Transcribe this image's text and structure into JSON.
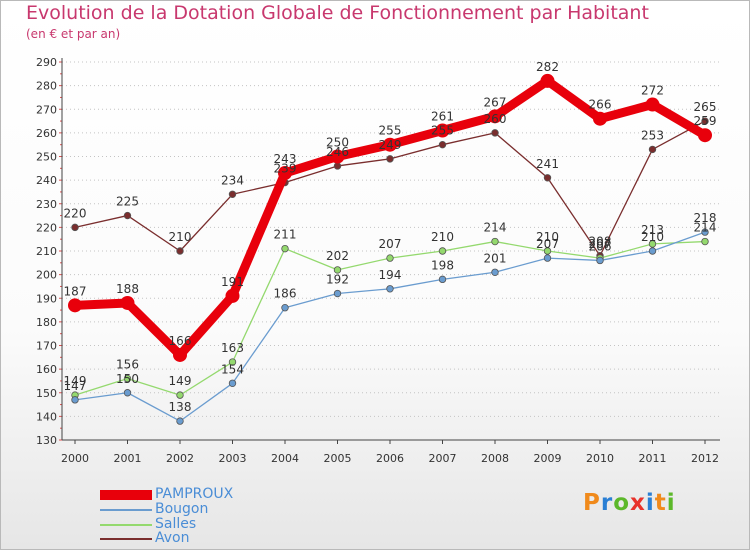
{
  "header": {
    "title": "Evolution de la Dotation Globale de Fonctionnement par Habitant",
    "subtitle": "(en € et par an)"
  },
  "logo": {
    "text": [
      "P",
      "r",
      "o",
      "x",
      "i",
      "t",
      "i"
    ],
    "colors": [
      "#f08a1c",
      "#2a7fd4",
      "#5cb82a",
      "#e8322a",
      "#2a7fd4",
      "#f08a1c",
      "#5cb82a"
    ]
  },
  "chart_data": {
    "type": "line",
    "title": "Evolution de la Dotation Globale de Fonctionnement par Habitant",
    "subtitle": "(en € et par an)",
    "x": [
      "2000",
      "2001",
      "2002",
      "2003",
      "2004",
      "2005",
      "2006",
      "2007",
      "2008",
      "2009",
      "2010",
      "2011",
      "2012"
    ],
    "ylim": [
      130,
      290
    ],
    "yticks": [
      130,
      140,
      150,
      160,
      170,
      180,
      190,
      200,
      210,
      220,
      230,
      240,
      250,
      260,
      270,
      280,
      290
    ],
    "grid": "horizontal-dotted",
    "legend_position": "bottom-left",
    "series": [
      {
        "name": "PAMPROUX",
        "color": "#e8000b",
        "values": [
          187,
          188,
          166,
          191,
          243,
          250,
          255,
          261,
          267,
          282,
          266,
          272,
          259
        ]
      },
      {
        "name": "Bougon",
        "color": "#6a9ccf",
        "values": [
          147,
          150,
          138,
          154,
          186,
          192,
          194,
          198,
          201,
          207,
          206,
          210,
          218
        ]
      },
      {
        "name": "Salles",
        "color": "#94d96e",
        "values": [
          149,
          156,
          149,
          163,
          211,
          202,
          207,
          210,
          214,
          210,
          207,
          213,
          214
        ]
      },
      {
        "name": "Avon",
        "color": "#7a2e2e",
        "values": [
          220,
          225,
          210,
          234,
          239,
          246,
          249,
          255,
          260,
          241,
          208,
          253,
          265
        ]
      }
    ]
  }
}
